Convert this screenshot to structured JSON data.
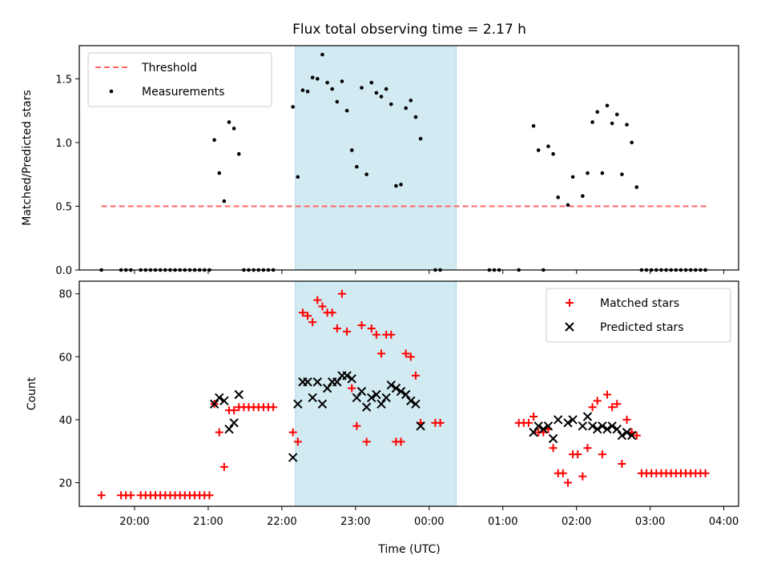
{
  "title": "Flux total observing time = 2.17 h",
  "xlabel": "Time (UTC)",
  "x_ticks": [
    "20:00",
    "21:00",
    "22:00",
    "23:00",
    "00:00",
    "01:00",
    "02:00",
    "03:00",
    "04:00"
  ],
  "colors": {
    "shade": "#ADD8E6",
    "threshold": "#FF6666",
    "measurement": "#000000",
    "matched": "#FF0000",
    "predicted": "#000000"
  },
  "chart_data": [
    {
      "type": "scatter",
      "ylabel": "Matched/Predicted stars",
      "ylim": [
        0,
        1.76
      ],
      "xlim": [
        "19:15",
        "04:12"
      ],
      "y_ticks": [
        "0.0",
        "0.5",
        "1.0",
        "1.5"
      ],
      "shaded_span": [
        "22:11",
        "00:22"
      ],
      "legend_position": "top-left",
      "legend": [
        "Threshold",
        "Measurements"
      ],
      "threshold": {
        "name": "Threshold",
        "y": 0.5,
        "x_range": [
          "19:33",
          "03:48"
        ]
      },
      "series": [
        {
          "name": "Measurements",
          "points": [
            [
              "19:33",
              0
            ],
            [
              "19:49",
              0
            ],
            [
              "19:53",
              0
            ],
            [
              "19:57",
              0
            ],
            [
              "20:05",
              0
            ],
            [
              "20:09",
              0
            ],
            [
              "20:13",
              0
            ],
            [
              "20:17",
              0
            ],
            [
              "20:21",
              0
            ],
            [
              "20:25",
              0
            ],
            [
              "20:29",
              0
            ],
            [
              "20:33",
              0
            ],
            [
              "20:37",
              0
            ],
            [
              "20:41",
              0
            ],
            [
              "20:45",
              0
            ],
            [
              "20:49",
              0
            ],
            [
              "20:53",
              0
            ],
            [
              "20:57",
              0
            ],
            [
              "21:01",
              0
            ],
            [
              "21:05",
              1.02
            ],
            [
              "21:09",
              0.76
            ],
            [
              "21:13",
              0.54
            ],
            [
              "21:17",
              1.16
            ],
            [
              "21:21",
              1.11
            ],
            [
              "21:25",
              0.91
            ],
            [
              "21:29",
              0
            ],
            [
              "21:33",
              0
            ],
            [
              "21:37",
              0
            ],
            [
              "21:41",
              0
            ],
            [
              "21:45",
              0
            ],
            [
              "21:49",
              0
            ],
            [
              "21:53",
              0
            ],
            [
              "22:09",
              1.28
            ],
            [
              "22:13",
              0.73
            ],
            [
              "22:17",
              1.41
            ],
            [
              "22:21",
              1.4
            ],
            [
              "22:25",
              1.51
            ],
            [
              "22:29",
              1.5
            ],
            [
              "22:33",
              1.69
            ],
            [
              "22:37",
              1.47
            ],
            [
              "22:41",
              1.42
            ],
            [
              "22:45",
              1.32
            ],
            [
              "22:49",
              1.48
            ],
            [
              "22:53",
              1.25
            ],
            [
              "22:57",
              0.94
            ],
            [
              "23:01",
              0.81
            ],
            [
              "23:05",
              1.43
            ],
            [
              "23:09",
              0.75
            ],
            [
              "23:13",
              1.47
            ],
            [
              "23:17",
              1.39
            ],
            [
              "23:21",
              1.36
            ],
            [
              "23:25",
              1.42
            ],
            [
              "23:29",
              1.3
            ],
            [
              "23:33",
              0.66
            ],
            [
              "23:37",
              0.67
            ],
            [
              "23:41",
              1.27
            ],
            [
              "23:45",
              1.33
            ],
            [
              "23:49",
              1.2
            ],
            [
              "23:53",
              1.03
            ],
            [
              "00:05",
              0
            ],
            [
              "00:09",
              0
            ],
            [
              "00:49",
              0
            ],
            [
              "00:53",
              0
            ],
            [
              "00:57",
              0
            ],
            [
              "01:13",
              0
            ],
            [
              "01:33",
              0
            ],
            [
              "01:25",
              1.13
            ],
            [
              "01:29",
              0.94
            ],
            [
              "01:37",
              0.97
            ],
            [
              "01:41",
              0.91
            ],
            [
              "01:45",
              0.57
            ],
            [
              "01:53",
              0.51
            ],
            [
              "01:57",
              0.73
            ],
            [
              "02:05",
              0.58
            ],
            [
              "02:09",
              0.76
            ],
            [
              "02:13",
              1.16
            ],
            [
              "02:17",
              1.24
            ],
            [
              "02:21",
              0.76
            ],
            [
              "02:25",
              1.29
            ],
            [
              "02:29",
              1.15
            ],
            [
              "02:33",
              1.22
            ],
            [
              "02:37",
              0.75
            ],
            [
              "02:41",
              1.14
            ],
            [
              "02:45",
              1.0
            ],
            [
              "02:49",
              0.65
            ],
            [
              "02:53",
              0
            ],
            [
              "02:57",
              0
            ],
            [
              "03:01",
              0
            ],
            [
              "03:05",
              0
            ],
            [
              "03:09",
              0
            ],
            [
              "03:13",
              0
            ],
            [
              "03:17",
              0
            ],
            [
              "03:21",
              0
            ],
            [
              "03:25",
              0
            ],
            [
              "03:29",
              0
            ],
            [
              "03:33",
              0
            ],
            [
              "03:37",
              0
            ],
            [
              "03:41",
              0
            ],
            [
              "03:45",
              0
            ]
          ]
        }
      ]
    },
    {
      "type": "scatter",
      "ylabel": "Count",
      "ylim": [
        12.5,
        84
      ],
      "xlim": [
        "19:15",
        "04:12"
      ],
      "y_ticks": [
        "20",
        "40",
        "60",
        "80"
      ],
      "shaded_span": [
        "22:11",
        "00:22"
      ],
      "legend_position": "top-right",
      "legend": [
        "Matched stars",
        "Predicted stars"
      ],
      "series": [
        {
          "name": "Matched stars",
          "points": [
            [
              "19:33",
              16
            ],
            [
              "19:49",
              16
            ],
            [
              "19:53",
              16
            ],
            [
              "19:57",
              16
            ],
            [
              "20:05",
              16
            ],
            [
              "20:09",
              16
            ],
            [
              "20:13",
              16
            ],
            [
              "20:17",
              16
            ],
            [
              "20:21",
              16
            ],
            [
              "20:25",
              16
            ],
            [
              "20:29",
              16
            ],
            [
              "20:33",
              16
            ],
            [
              "20:37",
              16
            ],
            [
              "20:41",
              16
            ],
            [
              "20:45",
              16
            ],
            [
              "20:49",
              16
            ],
            [
              "20:53",
              16
            ],
            [
              "20:57",
              16
            ],
            [
              "21:01",
              16
            ],
            [
              "21:05",
              45
            ],
            [
              "21:09",
              36
            ],
            [
              "21:13",
              25
            ],
            [
              "21:17",
              43
            ],
            [
              "21:21",
              43
            ],
            [
              "21:25",
              44
            ],
            [
              "21:29",
              44
            ],
            [
              "21:33",
              44
            ],
            [
              "21:37",
              44
            ],
            [
              "21:41",
              44
            ],
            [
              "21:45",
              44
            ],
            [
              "21:49",
              44
            ],
            [
              "21:53",
              44
            ],
            [
              "22:09",
              36
            ],
            [
              "22:13",
              33
            ],
            [
              "22:17",
              74
            ],
            [
              "22:21",
              73
            ],
            [
              "22:25",
              71
            ],
            [
              "22:29",
              78
            ],
            [
              "22:33",
              76
            ],
            [
              "22:37",
              74
            ],
            [
              "22:41",
              74
            ],
            [
              "22:45",
              69
            ],
            [
              "22:49",
              80
            ],
            [
              "22:53",
              68
            ],
            [
              "22:57",
              50
            ],
            [
              "23:01",
              38
            ],
            [
              "23:05",
              70
            ],
            [
              "23:09",
              33
            ],
            [
              "23:13",
              69
            ],
            [
              "23:17",
              67
            ],
            [
              "23:21",
              61
            ],
            [
              "23:25",
              67
            ],
            [
              "23:29",
              67
            ],
            [
              "23:33",
              33
            ],
            [
              "23:37",
              33
            ],
            [
              "23:41",
              61
            ],
            [
              "23:45",
              60
            ],
            [
              "23:49",
              54
            ],
            [
              "23:53",
              39
            ],
            [
              "00:05",
              39
            ],
            [
              "00:09",
              39
            ],
            [
              "01:13",
              39
            ],
            [
              "01:17",
              39
            ],
            [
              "01:21",
              39
            ],
            [
              "01:25",
              41
            ],
            [
              "01:29",
              36
            ],
            [
              "01:33",
              36
            ],
            [
              "01:37",
              37
            ],
            [
              "01:41",
              31
            ],
            [
              "01:45",
              23
            ],
            [
              "01:49",
              23
            ],
            [
              "01:53",
              20
            ],
            [
              "01:57",
              29
            ],
            [
              "02:01",
              29
            ],
            [
              "02:05",
              22
            ],
            [
              "02:09",
              31
            ],
            [
              "02:13",
              44
            ],
            [
              "02:17",
              46
            ],
            [
              "02:21",
              29
            ],
            [
              "02:25",
              48
            ],
            [
              "02:29",
              44
            ],
            [
              "02:33",
              45
            ],
            [
              "02:37",
              26
            ],
            [
              "02:41",
              40
            ],
            [
              "02:45",
              36
            ],
            [
              "02:49",
              35
            ],
            [
              "02:53",
              23
            ],
            [
              "02:57",
              23
            ],
            [
              "03:01",
              23
            ],
            [
              "03:05",
              23
            ],
            [
              "03:09",
              23
            ],
            [
              "03:13",
              23
            ],
            [
              "03:17",
              23
            ],
            [
              "03:21",
              23
            ],
            [
              "03:25",
              23
            ],
            [
              "03:29",
              23
            ],
            [
              "03:33",
              23
            ],
            [
              "03:37",
              23
            ],
            [
              "03:41",
              23
            ],
            [
              "03:45",
              23
            ]
          ]
        },
        {
          "name": "Predicted stars",
          "points": [
            [
              "21:05",
              45
            ],
            [
              "21:09",
              47
            ],
            [
              "21:13",
              46
            ],
            [
              "21:17",
              37
            ],
            [
              "21:21",
              39
            ],
            [
              "21:25",
              48
            ],
            [
              "22:09",
              28
            ],
            [
              "22:13",
              45
            ],
            [
              "22:17",
              52
            ],
            [
              "22:21",
              52
            ],
            [
              "22:25",
              47
            ],
            [
              "22:29",
              52
            ],
            [
              "22:33",
              45
            ],
            [
              "22:37",
              50
            ],
            [
              "22:41",
              52
            ],
            [
              "22:45",
              52
            ],
            [
              "22:49",
              54
            ],
            [
              "22:53",
              54
            ],
            [
              "22:57",
              53
            ],
            [
              "23:01",
              47
            ],
            [
              "23:05",
              49
            ],
            [
              "23:09",
              44
            ],
            [
              "23:13",
              47
            ],
            [
              "23:17",
              48
            ],
            [
              "23:21",
              45
            ],
            [
              "23:25",
              47
            ],
            [
              "23:29",
              51
            ],
            [
              "23:33",
              50
            ],
            [
              "23:37",
              49
            ],
            [
              "23:41",
              48
            ],
            [
              "23:45",
              46
            ],
            [
              "23:49",
              45
            ],
            [
              "23:53",
              38
            ],
            [
              "01:25",
              36
            ],
            [
              "01:29",
              38
            ],
            [
              "01:33",
              37
            ],
            [
              "01:37",
              38
            ],
            [
              "01:41",
              34
            ],
            [
              "01:45",
              40
            ],
            [
              "01:53",
              39
            ],
            [
              "01:57",
              40
            ],
            [
              "02:05",
              38
            ],
            [
              "02:09",
              41
            ],
            [
              "02:13",
              38
            ],
            [
              "02:17",
              37
            ],
            [
              "02:21",
              38
            ],
            [
              "02:25",
              37
            ],
            [
              "02:29",
              38
            ],
            [
              "02:33",
              37
            ],
            [
              "02:37",
              35
            ],
            [
              "02:41",
              36
            ],
            [
              "02:45",
              35
            ]
          ]
        }
      ]
    }
  ]
}
